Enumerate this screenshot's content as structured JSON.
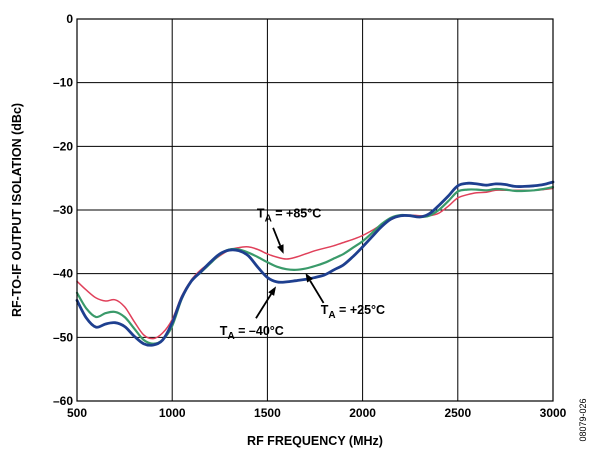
{
  "chart_data": {
    "type": "line",
    "title": "",
    "xlabel": "RF FREQUENCY (MHz)",
    "ylabel": "RF-TO-IF OUTPUT ISOLATION (dBc)",
    "xlim": [
      500,
      3000
    ],
    "ylim": [
      -60,
      0
    ],
    "x_ticks": [
      500,
      1000,
      1500,
      2000,
      2500,
      3000
    ],
    "y_ticks": [
      0,
      -10,
      -20,
      -30,
      -40,
      -50,
      -60
    ],
    "x_tick_labels": [
      "500",
      "1000",
      "1500",
      "2000",
      "2500",
      "3000"
    ],
    "y_tick_labels": [
      "0",
      "–10",
      "–20",
      "–30",
      "–40",
      "–50",
      "–60"
    ],
    "grid": true,
    "figure_id": "08079-026",
    "series": [
      {
        "color": "#e0405a",
        "x": [
          500,
          550,
          600,
          650,
          700,
          750,
          800,
          850,
          900,
          950,
          1000,
          1050,
          1100,
          1150,
          1200,
          1250,
          1300,
          1350,
          1400,
          1450,
          1500,
          1550,
          1600,
          1650,
          1700,
          1750,
          1800,
          1850,
          1900,
          1950,
          2000,
          2050,
          2100,
          2150,
          2200,
          2250,
          2300,
          2350,
          2400,
          2450,
          2500,
          2550,
          2600,
          2650,
          2700,
          2750,
          2800,
          2850,
          2900,
          2950,
          3000
        ],
        "values": [
          -41.2,
          -42.6,
          -43.8,
          -44.3,
          -44.1,
          -45.2,
          -47.5,
          -49.6,
          -50.2,
          -49.3,
          -47.2,
          -43.5,
          -41.0,
          -39.4,
          -38.3,
          -37.2,
          -36.3,
          -35.9,
          -35.8,
          -36.2,
          -36.9,
          -37.4,
          -37.7,
          -37.4,
          -36.9,
          -36.4,
          -36.0,
          -35.6,
          -35.1,
          -34.6,
          -34.0,
          -33.2,
          -32.3,
          -31.5,
          -30.9,
          -30.8,
          -30.9,
          -30.9,
          -30.5,
          -29.4,
          -28.1,
          -27.6,
          -27.3,
          -27.2,
          -26.9,
          -26.9,
          -26.9,
          -26.9,
          -26.9,
          -26.8,
          -26.6
        ],
        "label": "T_A = +85°C"
      },
      {
        "color": "#3a9a6a",
        "x": [
          500,
          550,
          600,
          650,
          700,
          750,
          800,
          850,
          900,
          950,
          1000,
          1050,
          1100,
          1150,
          1200,
          1250,
          1300,
          1350,
          1400,
          1450,
          1500,
          1550,
          1600,
          1650,
          1700,
          1750,
          1800,
          1850,
          1900,
          1950,
          2000,
          2050,
          2100,
          2150,
          2200,
          2250,
          2300,
          2350,
          2400,
          2450,
          2500,
          2550,
          2600,
          2650,
          2700,
          2750,
          2800,
          2850,
          2900,
          2950,
          3000
        ],
        "values": [
          -43.0,
          -45.5,
          -46.8,
          -46.2,
          -46.0,
          -46.8,
          -48.6,
          -50.4,
          -51.0,
          -50.4,
          -48.2,
          -44.0,
          -41.2,
          -39.8,
          -38.4,
          -37.0,
          -36.2,
          -36.2,
          -36.7,
          -37.4,
          -38.2,
          -38.9,
          -39.3,
          -39.4,
          -39.2,
          -38.8,
          -38.3,
          -37.6,
          -36.9,
          -35.9,
          -34.9,
          -33.6,
          -32.2,
          -31.2,
          -30.8,
          -30.9,
          -31.1,
          -30.9,
          -30.0,
          -28.6,
          -27.1,
          -26.8,
          -26.8,
          -26.9,
          -26.7,
          -26.8,
          -27.0,
          -27.0,
          -26.9,
          -26.7,
          -26.4
        ],
        "label": "T_A = +25°C"
      },
      {
        "color": "#1e3f8f",
        "x": [
          500,
          550,
          600,
          650,
          700,
          750,
          800,
          850,
          900,
          950,
          1000,
          1050,
          1100,
          1150,
          1200,
          1250,
          1300,
          1350,
          1400,
          1450,
          1500,
          1550,
          1600,
          1650,
          1700,
          1750,
          1800,
          1850,
          1900,
          1950,
          2000,
          2050,
          2100,
          2150,
          2200,
          2250,
          2300,
          2350,
          2400,
          2450,
          2500,
          2550,
          2600,
          2650,
          2700,
          2750,
          2800,
          2850,
          2900,
          2950,
          3000
        ],
        "values": [
          -44.2,
          -47.0,
          -48.4,
          -47.9,
          -47.7,
          -48.3,
          -49.8,
          -51.0,
          -51.2,
          -50.4,
          -47.7,
          -43.8,
          -41.2,
          -39.7,
          -38.2,
          -36.9,
          -36.3,
          -36.4,
          -37.2,
          -39.0,
          -40.6,
          -41.3,
          -41.3,
          -41.1,
          -40.9,
          -40.6,
          -40.2,
          -39.4,
          -38.6,
          -37.3,
          -35.8,
          -34.2,
          -32.6,
          -31.4,
          -30.9,
          -30.9,
          -31.1,
          -30.6,
          -29.3,
          -27.8,
          -26.2,
          -25.8,
          -25.9,
          -26.1,
          -25.9,
          -26.0,
          -26.3,
          -26.3,
          -26.2,
          -26.0,
          -25.6
        ],
        "label": "T_A = –40°C"
      }
    ],
    "annotations": [
      {
        "main": "T",
        "sub": "A",
        "rest": " = +85°C",
        "text_x": 1445,
        "text_y": -31.2,
        "arrow_from": [
          1530,
          -32.8
        ],
        "arrow_to": [
          1585,
          -36.9
        ]
      },
      {
        "main": "T",
        "sub": "A",
        "rest": " = +25°C",
        "text_x": 1780,
        "text_y": -46.3,
        "arrow_from": [
          1795,
          -44.6
        ],
        "arrow_to": [
          1700,
          -39.9
        ]
      },
      {
        "main": "T",
        "sub": "A",
        "rest": " = –40°C",
        "text_x": 1250,
        "text_y": -49.6,
        "arrow_from": [
          1440,
          -47.0
        ],
        "arrow_to": [
          1545,
          -42.0
        ]
      }
    ]
  }
}
